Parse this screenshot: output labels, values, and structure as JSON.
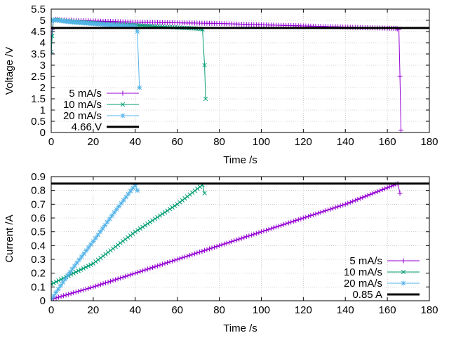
{
  "colors": {
    "series_5": "#9400d3",
    "series_10": "#009e73",
    "series_20": "#56b4e9",
    "threshold": "#000000"
  },
  "chart_data": [
    {
      "type": "line",
      "title": "",
      "xlabel": "Time /s",
      "ylabel": "Voltage /V",
      "xlim": [
        0,
        180
      ],
      "ylim": [
        0,
        5.5
      ],
      "grid": true,
      "legend_position": "bottom-left",
      "x_ticks": [
        "0",
        "20",
        "40",
        "60",
        "80",
        "100",
        "120",
        "140",
        "160",
        "180"
      ],
      "y_ticks": [
        "0",
        "0.5",
        "1",
        "1.5",
        "2",
        "2.5",
        "3",
        "3.5",
        "4",
        "4.5",
        "5",
        "5.5"
      ],
      "series": [
        {
          "name": "5 mA/s",
          "marker": "plus",
          "color": "#9400d3",
          "points": [
            [
              0,
              3.55
            ],
            [
              0.5,
              4.6
            ],
            [
              1,
              4.97
            ],
            [
              2,
              5.05
            ],
            [
              5,
              5.02
            ],
            [
              20,
              4.97
            ],
            [
              40,
              4.92
            ],
            [
              60,
              4.89
            ],
            [
              80,
              4.86
            ],
            [
              100,
              4.8
            ],
            [
              120,
              4.75
            ],
            [
              140,
              4.7
            ],
            [
              160,
              4.65
            ],
            [
              164,
              4.64
            ],
            [
              165.5,
              4.6
            ],
            [
              166,
              2.5
            ],
            [
              166.5,
              0.1
            ]
          ]
        },
        {
          "name": "10 mA/s",
          "marker": "x",
          "color": "#009e73",
          "points": [
            [
              0,
              3.6
            ],
            [
              0.5,
              4.3
            ],
            [
              1,
              5.0
            ],
            [
              2,
              5.03
            ],
            [
              10,
              4.95
            ],
            [
              20,
              4.88
            ],
            [
              40,
              4.78
            ],
            [
              60,
              4.68
            ],
            [
              70,
              4.63
            ],
            [
              72,
              4.6
            ],
            [
              73,
              3.0
            ],
            [
              73.5,
              1.5
            ]
          ]
        },
        {
          "name": "20 mA/s",
          "marker": "star",
          "color": "#56b4e9",
          "points": [
            [
              0,
              4.95
            ],
            [
              1,
              5.02
            ],
            [
              5,
              4.97
            ],
            [
              10,
              4.92
            ],
            [
              20,
              4.85
            ],
            [
              30,
              4.78
            ],
            [
              40,
              4.72
            ],
            [
              41,
              4.5
            ],
            [
              42,
              2.0
            ]
          ]
        }
      ],
      "threshold": {
        "name": "4.66 V",
        "value": 4.66,
        "color": "#000000"
      }
    },
    {
      "type": "line",
      "title": "",
      "xlabel": "Time /s",
      "ylabel": "Current /A",
      "xlim": [
        0,
        180
      ],
      "ylim": [
        0,
        0.9
      ],
      "grid": true,
      "legend_position": "bottom-right",
      "x_ticks": [
        "0",
        "20",
        "40",
        "60",
        "80",
        "100",
        "120",
        "140",
        "160",
        "180"
      ],
      "y_ticks": [
        "0",
        "0.1",
        "0.2",
        "0.3",
        "0.4",
        "0.5",
        "0.6",
        "0.7",
        "0.8",
        "0.9"
      ],
      "series": [
        {
          "name": "5 mA/s",
          "marker": "plus",
          "color": "#9400d3",
          "points": [
            [
              0,
              0.01
            ],
            [
              20,
              0.1
            ],
            [
              40,
              0.2
            ],
            [
              60,
              0.3
            ],
            [
              80,
              0.4
            ],
            [
              100,
              0.5
            ],
            [
              120,
              0.6
            ],
            [
              140,
              0.7
            ],
            [
              160,
              0.82
            ],
            [
              165,
              0.85
            ],
            [
              166,
              0.78
            ]
          ]
        },
        {
          "name": "10 mA/s",
          "marker": "x",
          "color": "#009e73",
          "points": [
            [
              0,
              0.12
            ],
            [
              20,
              0.27
            ],
            [
              40,
              0.5
            ],
            [
              60,
              0.7
            ],
            [
              72,
              0.84
            ],
            [
              73,
              0.78
            ]
          ]
        },
        {
          "name": "20 mA/s",
          "marker": "star",
          "color": "#56b4e9",
          "points": [
            [
              0,
              0.01
            ],
            [
              10,
              0.23
            ],
            [
              20,
              0.43
            ],
            [
              30,
              0.64
            ],
            [
              40,
              0.84
            ],
            [
              41,
              0.8
            ]
          ]
        }
      ],
      "threshold": {
        "name": "0.85 A",
        "value": 0.85,
        "color": "#000000"
      }
    }
  ]
}
